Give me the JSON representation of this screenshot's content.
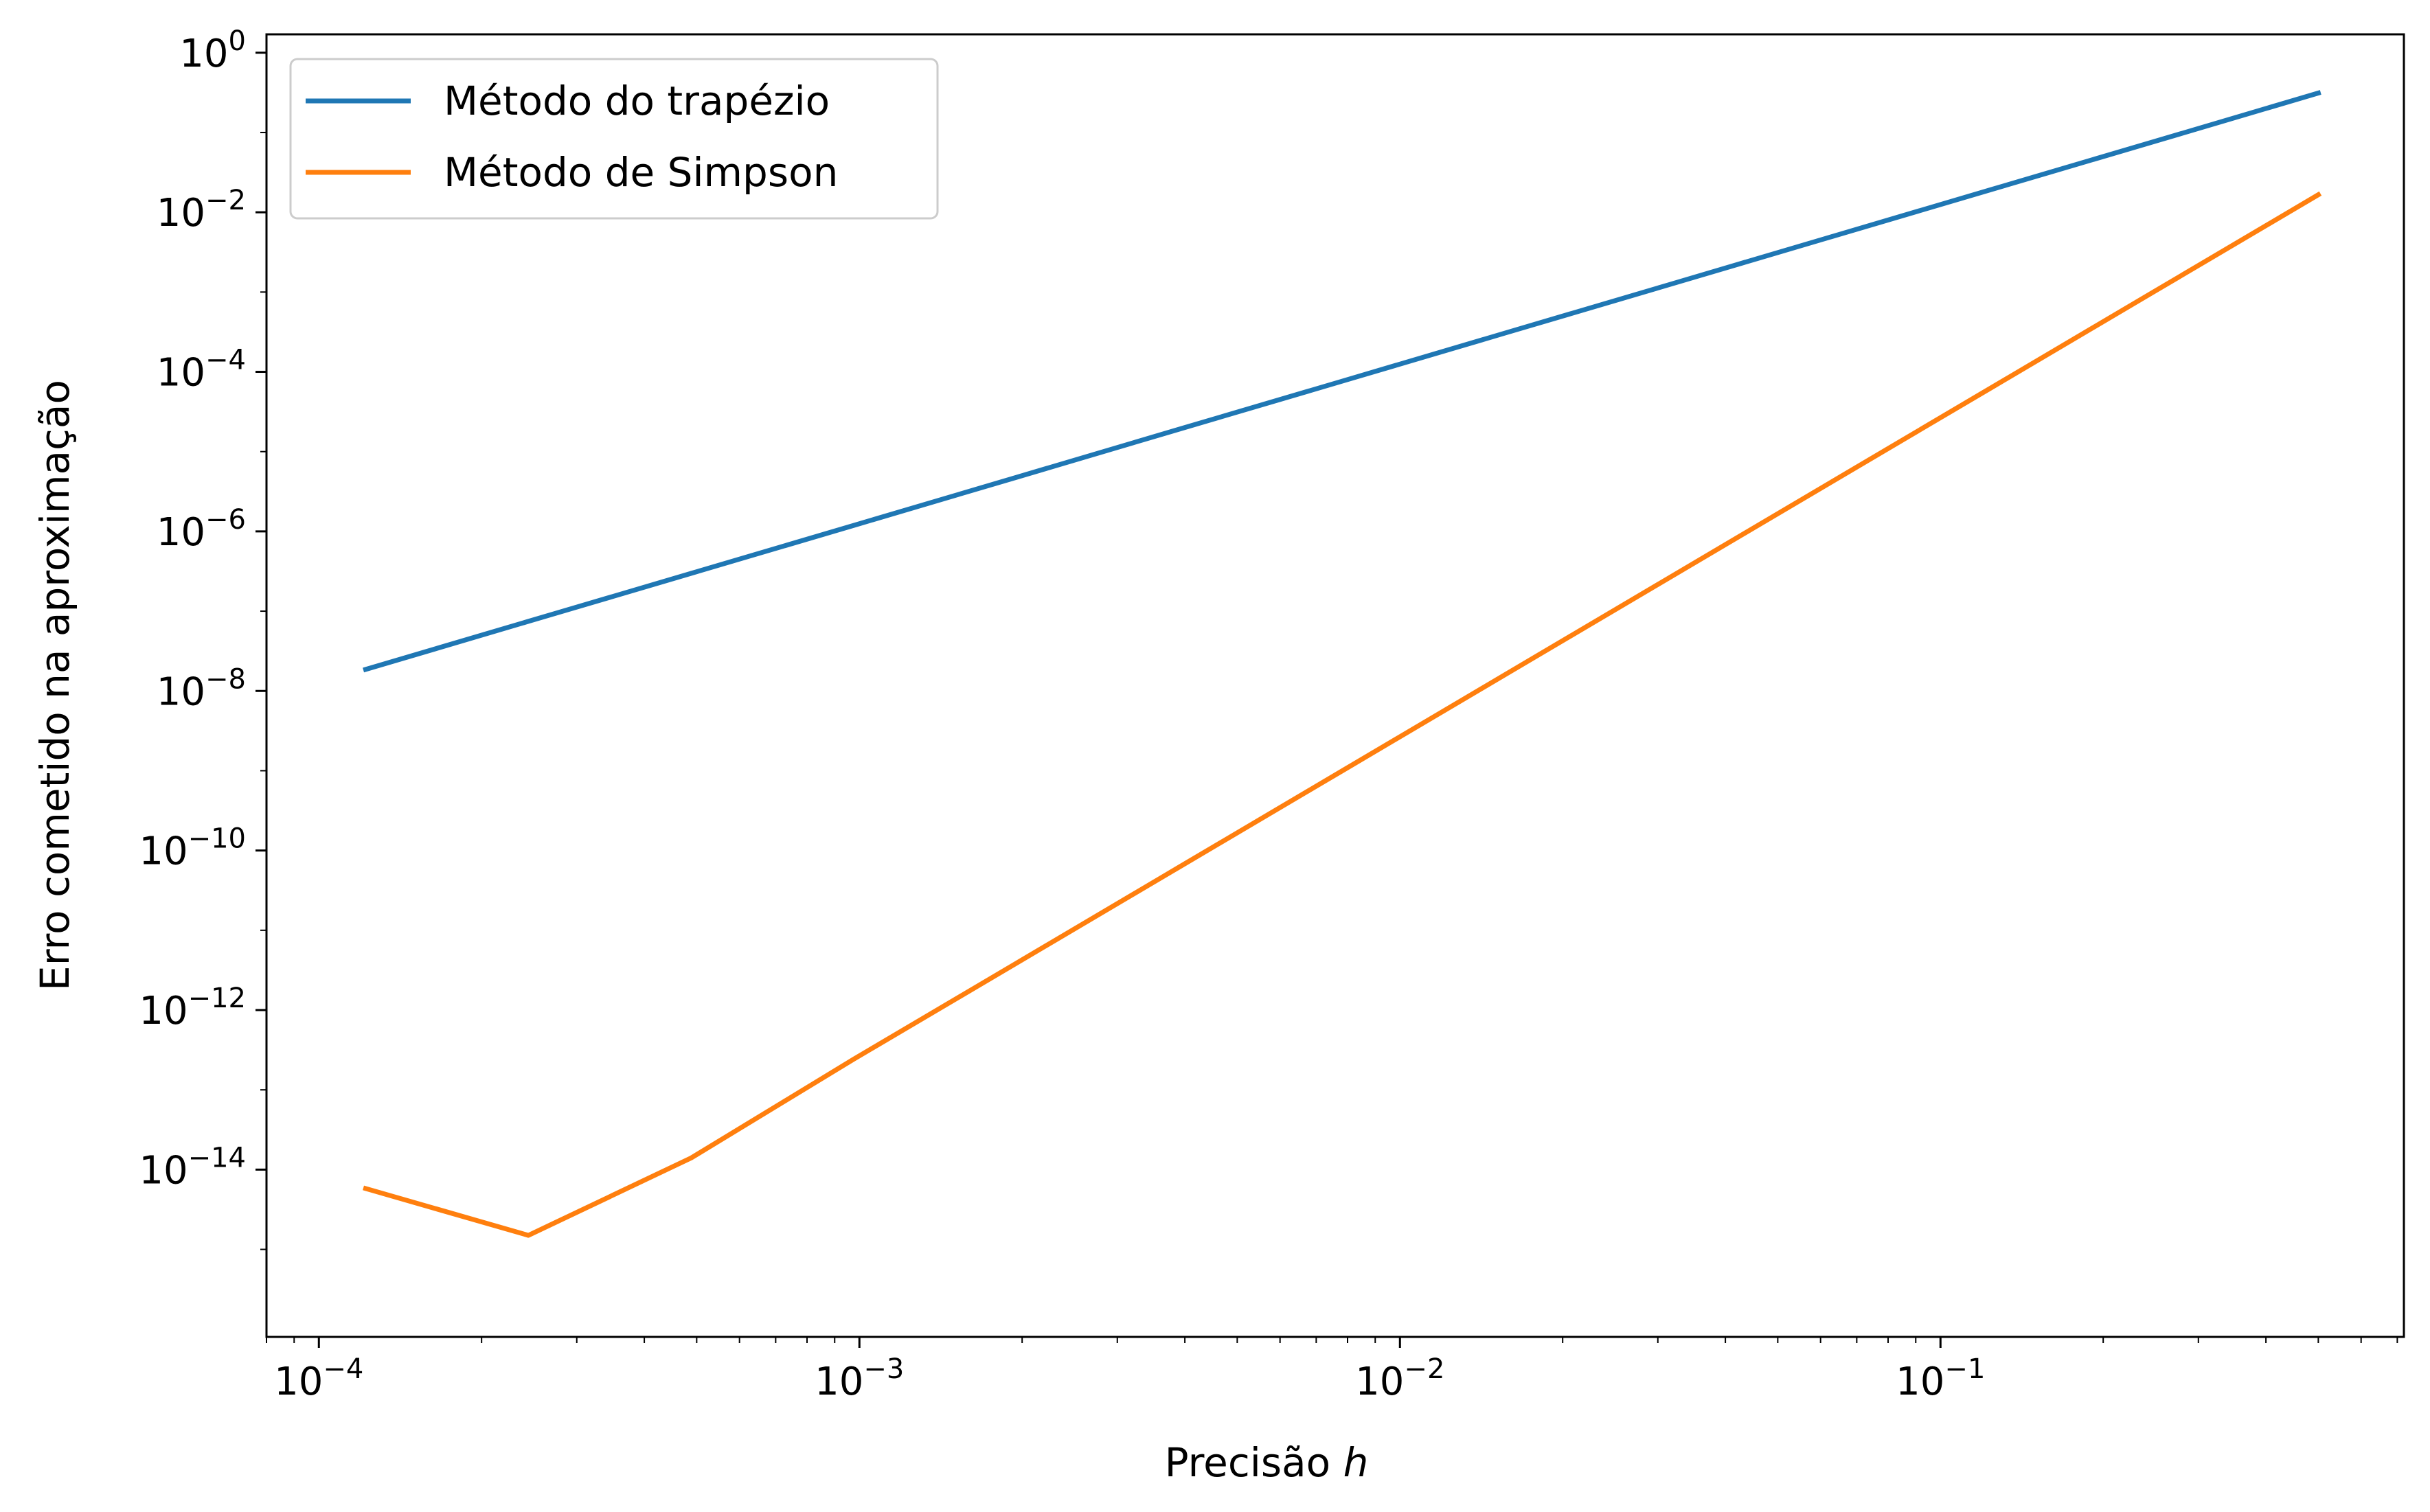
{
  "chart_data": {
    "type": "line",
    "title": "",
    "xlabel": "Precisão",
    "xlabel_var": "h",
    "ylabel": "Erro cometido na aproximação",
    "xscale": "log",
    "yscale": "log",
    "xlim": [
      8e-05,
      0.72
    ],
    "ylim": [
      8e-17,
      1.7
    ],
    "grid": false,
    "legend": "top-left",
    "x_major_ticks": [
      0.0001,
      0.001,
      0.01,
      0.1
    ],
    "x_tick_labels": [
      {
        "base": "10",
        "exp": "−4"
      },
      {
        "base": "10",
        "exp": "−3"
      },
      {
        "base": "10",
        "exp": "−2"
      },
      {
        "base": "10",
        "exp": "−1"
      }
    ],
    "y_major_ticks": [
      1e-14,
      1e-12,
      1e-10,
      1e-08,
      1e-06,
      0.0001,
      0.01,
      1
    ],
    "y_tick_labels": [
      {
        "base": "10",
        "exp": "−14"
      },
      {
        "base": "10",
        "exp": "−12"
      },
      {
        "base": "10",
        "exp": "−10"
      },
      {
        "base": "10",
        "exp": "−8"
      },
      {
        "base": "10",
        "exp": "−6"
      },
      {
        "base": "10",
        "exp": "−4"
      },
      {
        "base": "10",
        "exp": "−2"
      },
      {
        "base": "10",
        "exp": "0"
      }
    ],
    "x": [
      0.5,
      0.25,
      0.125,
      0.0625,
      0.03125,
      0.015625,
      0.0078125,
      0.00390625,
      0.001953125,
      0.0009765625,
      0.00048828125,
      0.000244140625,
      0.0001220703125
    ],
    "series": [
      {
        "name": "Método do trapézio",
        "color": "#1f77b4",
        "values": [
          0.3125,
          0.078,
          0.0195,
          0.00488,
          0.00122,
          0.000305,
          7.63e-05,
          1.91e-05,
          4.77e-06,
          1.19e-06,
          2.98e-07,
          7.45e-08,
          1.86e-08
        ]
      },
      {
        "name": "Método de Simpson",
        "color": "#ff7f0e",
        "values": [
          0.0166,
          0.00104,
          6.5e-05,
          4.07e-06,
          2.54e-07,
          1.59e-08,
          9.93e-10,
          6.21e-11,
          3.88e-12,
          2.43e-13,
          1.4e-14,
          1.5e-15,
          5.8e-15
        ]
      }
    ]
  }
}
